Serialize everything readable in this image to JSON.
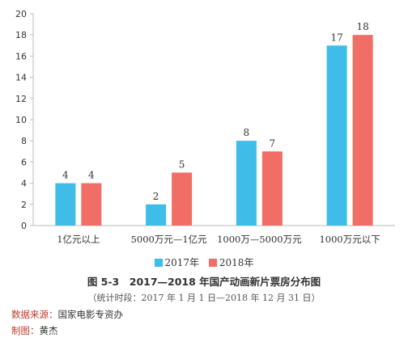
{
  "colors": {
    "series_2017": "#3fbde8",
    "series_2018": "#f06e66",
    "axis": "#bbbbbb",
    "text": "#333333"
  },
  "chart_data": {
    "type": "bar",
    "categories": [
      "1亿元以上",
      "5000万元—1亿元",
      "1000万—5000万元",
      "1000万元以下"
    ],
    "series": [
      {
        "name": "2017年",
        "values": [
          4,
          2,
          8,
          17
        ]
      },
      {
        "name": "2018年",
        "values": [
          4,
          5,
          7,
          18
        ]
      }
    ],
    "ylim": [
      0,
      20
    ],
    "yticks": [
      0,
      2,
      4,
      6,
      8,
      10,
      12,
      14,
      16,
      18,
      20
    ],
    "grid": false,
    "legend_position": "bottom",
    "title": "图 5-3　2017—2018 年国产动画新片票房分布图",
    "subtitle": "（统计时段：2017 年 1 月 1 日—2018 年 12 月 31 日）"
  },
  "notes": {
    "source_label": "数据来源：",
    "source_value": "国家电影专资办",
    "author_label": "制图：",
    "author_value": "黄杰"
  }
}
